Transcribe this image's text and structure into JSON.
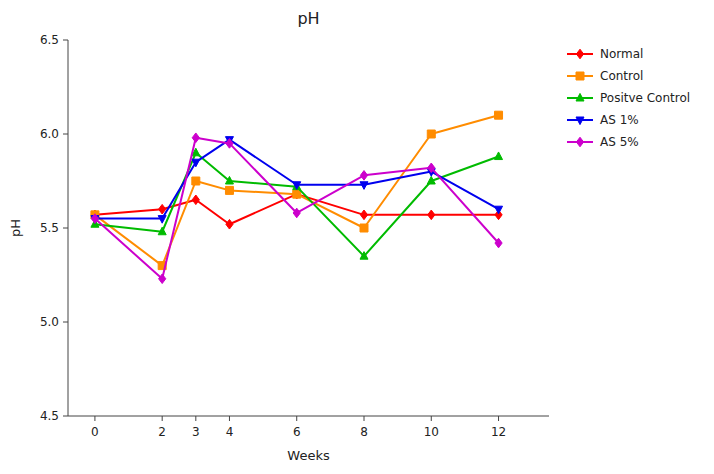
{
  "chart_data": {
    "type": "line",
    "title": "pH",
    "xlabel": "Weeks",
    "ylabel": "pH",
    "x": [
      0,
      2,
      3,
      4,
      6,
      8,
      10,
      12
    ],
    "series": [
      {
        "name": "Normal",
        "color": "#FF0000",
        "marker": "diamond",
        "values": [
          5.57,
          5.6,
          5.65,
          5.52,
          5.68,
          5.57,
          5.57,
          5.57
        ]
      },
      {
        "name": "Control",
        "color": "#FF8C00",
        "marker": "square",
        "values": [
          5.57,
          5.3,
          5.75,
          5.7,
          5.68,
          5.5,
          6.0,
          6.1
        ]
      },
      {
        "name": "Positve Control",
        "color": "#00BB00",
        "marker": "triangle-up",
        "values": [
          5.52,
          5.48,
          5.9,
          5.75,
          5.72,
          5.35,
          5.75,
          5.88
        ]
      },
      {
        "name": "AS 1%",
        "color": "#0000EE",
        "marker": "triangle-down",
        "values": [
          5.55,
          5.55,
          5.85,
          5.97,
          5.73,
          5.73,
          5.8,
          5.6
        ]
      },
      {
        "name": "AS 5%",
        "color": "#CC00CC",
        "marker": "diamond",
        "values": [
          5.55,
          5.23,
          5.98,
          5.95,
          5.58,
          5.78,
          5.82,
          5.42
        ]
      }
    ],
    "xlim": [
      -0.8,
      13.5
    ],
    "xticks": [
      0,
      2,
      3,
      4,
      6,
      8,
      10,
      12
    ],
    "ylim": [
      4.5,
      6.5
    ],
    "yticks": [
      4.5,
      {
        "value": 5,
        "label": "5.0"
      },
      5.5,
      {
        "value": 6,
        "label": "6.0"
      },
      6.5
    ],
    "grid": false,
    "legend": "upper right"
  }
}
